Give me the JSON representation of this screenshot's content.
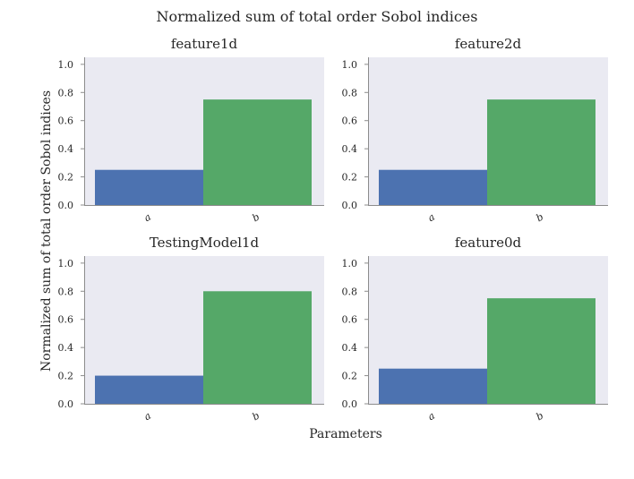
{
  "figure": {
    "title": "Normalized sum of total order Sobol indices",
    "xlabel": "Parameters",
    "ylabel": "Normalized sum of total order Sobol indices"
  },
  "colors": {
    "panel_bg": "#eaeaf2",
    "axis": "#8c8c8c",
    "bar_a": "#4c72b0",
    "bar_b": "#55a868"
  },
  "chart_data": [
    {
      "type": "bar",
      "title": "feature1d",
      "categories": [
        "a",
        "b"
      ],
      "values": [
        0.25,
        0.75
      ],
      "ylim": [
        0,
        1.05
      ],
      "yticks": [
        "0.0",
        "0.2",
        "0.4",
        "0.6",
        "0.8",
        "1.0"
      ],
      "grid": false
    },
    {
      "type": "bar",
      "title": "feature2d",
      "categories": [
        "a",
        "b"
      ],
      "values": [
        0.25,
        0.75
      ],
      "ylim": [
        0,
        1.05
      ],
      "yticks": [
        "0.0",
        "0.2",
        "0.4",
        "0.6",
        "0.8",
        "1.0"
      ],
      "grid": false
    },
    {
      "type": "bar",
      "title": "TestingModel1d",
      "categories": [
        "a",
        "b"
      ],
      "values": [
        0.2,
        0.8
      ],
      "ylim": [
        0,
        1.05
      ],
      "yticks": [
        "0.0",
        "0.2",
        "0.4",
        "0.6",
        "0.8",
        "1.0"
      ],
      "grid": false
    },
    {
      "type": "bar",
      "title": "feature0d",
      "categories": [
        "a",
        "b"
      ],
      "values": [
        0.25,
        0.75
      ],
      "ylim": [
        0,
        1.05
      ],
      "yticks": [
        "0.0",
        "0.2",
        "0.4",
        "0.6",
        "0.8",
        "1.0"
      ],
      "grid": false
    }
  ]
}
